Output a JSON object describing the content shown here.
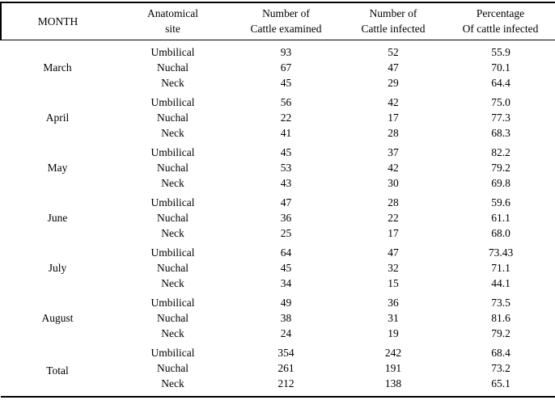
{
  "table": {
    "columns": [
      {
        "label": "MONTH"
      },
      {
        "label": "Anatomical\nsite"
      },
      {
        "label": "Number of\nCattle examined"
      },
      {
        "label": "Number of\nCattle infected"
      },
      {
        "label": "Percentage\nOf cattle infected"
      }
    ],
    "groups": [
      {
        "month": "March",
        "rows": [
          {
            "site": "Umbilical",
            "examined": "93",
            "infected": "52",
            "percentage": "55.9"
          },
          {
            "site": "Nuchal",
            "examined": "67",
            "infected": "47",
            "percentage": "70.1"
          },
          {
            "site": "Neck",
            "examined": "45",
            "infected": "29",
            "percentage": "64.4"
          }
        ]
      },
      {
        "month": "April",
        "rows": [
          {
            "site": "Umbilical",
            "examined": "56",
            "infected": "42",
            "percentage": "75.0"
          },
          {
            "site": "Nuchal",
            "examined": "22",
            "infected": "17",
            "percentage": "77.3"
          },
          {
            "site": "Neck",
            "examined": "41",
            "infected": "28",
            "percentage": "68.3"
          }
        ]
      },
      {
        "month": "May",
        "rows": [
          {
            "site": "Umbilical",
            "examined": "45",
            "infected": "37",
            "percentage": "82.2"
          },
          {
            "site": "Nuchal",
            "examined": "53",
            "infected": "42",
            "percentage": "79.2"
          },
          {
            "site": "Neck",
            "examined": "43",
            "infected": "30",
            "percentage": "69.8"
          }
        ]
      },
      {
        "month": "June",
        "rows": [
          {
            "site": "Umbilical",
            "examined": "47",
            "infected": "28",
            "percentage": "59.6"
          },
          {
            "site": "Nuchal",
            "examined": "36",
            "infected": "22",
            "percentage": "61.1"
          },
          {
            "site": "Neck",
            "examined": "25",
            "infected": "17",
            "percentage": "68.0"
          }
        ]
      },
      {
        "month": "July",
        "rows": [
          {
            "site": "Umbilical",
            "examined": "64",
            "infected": "47",
            "percentage": "73.43"
          },
          {
            "site": "Nuchal",
            "examined": "45",
            "infected": "32",
            "percentage": "71.1"
          },
          {
            "site": "Neck",
            "examined": "34",
            "infected": "15",
            "percentage": "44.1"
          }
        ]
      },
      {
        "month": "August",
        "rows": [
          {
            "site": "Umbilical",
            "examined": "49",
            "infected": "36",
            "percentage": "73.5"
          },
          {
            "site": "Nuchal",
            "examined": "38",
            "infected": "31",
            "percentage": "81.6"
          },
          {
            "site": "Neck",
            "examined": "24",
            "infected": "19",
            "percentage": "79.2"
          }
        ]
      },
      {
        "month": "Total",
        "rows": [
          {
            "site": "Umbilical",
            "examined": "354",
            "infected": "242",
            "percentage": "68.4"
          },
          {
            "site": "Nuchal",
            "examined": "261",
            "infected": "191",
            "percentage": "73.2"
          },
          {
            "site": "Neck",
            "examined": "212",
            "infected": "138",
            "percentage": "65.1"
          }
        ]
      }
    ]
  }
}
